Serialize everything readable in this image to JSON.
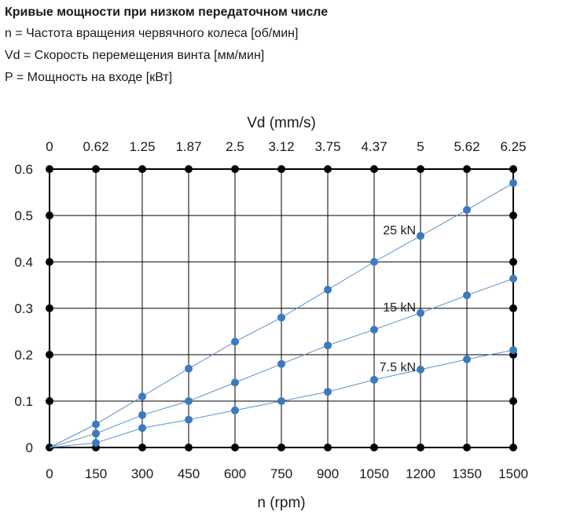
{
  "header": {
    "title": "Кривые мощности при низком передаточном числе",
    "line1": "n = Частота вращения червячного колеса [об/мин]",
    "line2": "Vd = Скорость перемещения винта [мм/мин]",
    "line3": "P = Мощность на входе [кВт]"
  },
  "chart_data": {
    "type": "line",
    "xlabel": "n  (rpm)",
    "x2label": "Vd (mm/s)",
    "x": [
      0,
      150,
      300,
      450,
      600,
      750,
      900,
      1050,
      1200,
      1350,
      1500
    ],
    "x_tick_labels": [
      "0",
      "150",
      "300",
      "450",
      "600",
      "750",
      "900",
      "1050",
      "1200",
      "1350",
      "1500"
    ],
    "x2_tick_labels": [
      "0",
      "0.62",
      "1.25",
      "1.87",
      "2.5",
      "3.12",
      "3.75",
      "4.37",
      "5",
      "5.62",
      "6.25"
    ],
    "y_tick_labels": [
      "0",
      "0.1",
      "0.2",
      "0.3",
      "0.4",
      "0.5",
      "0.6"
    ],
    "xlim": [
      0,
      1500
    ],
    "ylim": [
      0,
      0.6
    ],
    "grid": true,
    "series": [
      {
        "name": "25 kN",
        "values": [
          0,
          0.05,
          0.11,
          0.17,
          0.228,
          0.28,
          0.34,
          0.4,
          0.456,
          0.512,
          0.57
        ]
      },
      {
        "name": "15 kN",
        "values": [
          0,
          0.03,
          0.07,
          0.1,
          0.14,
          0.18,
          0.22,
          0.254,
          0.29,
          0.328,
          0.364
        ]
      },
      {
        "name": "7.5 kN",
        "values": [
          0,
          0.01,
          0.042,
          0.06,
          0.08,
          0.1,
          0.12,
          0.146,
          0.168,
          0.19,
          0.21
        ]
      }
    ],
    "colors": {
      "series": "#3a7bbf",
      "grid_marker": "#000000",
      "line": "#5b92c9"
    }
  }
}
